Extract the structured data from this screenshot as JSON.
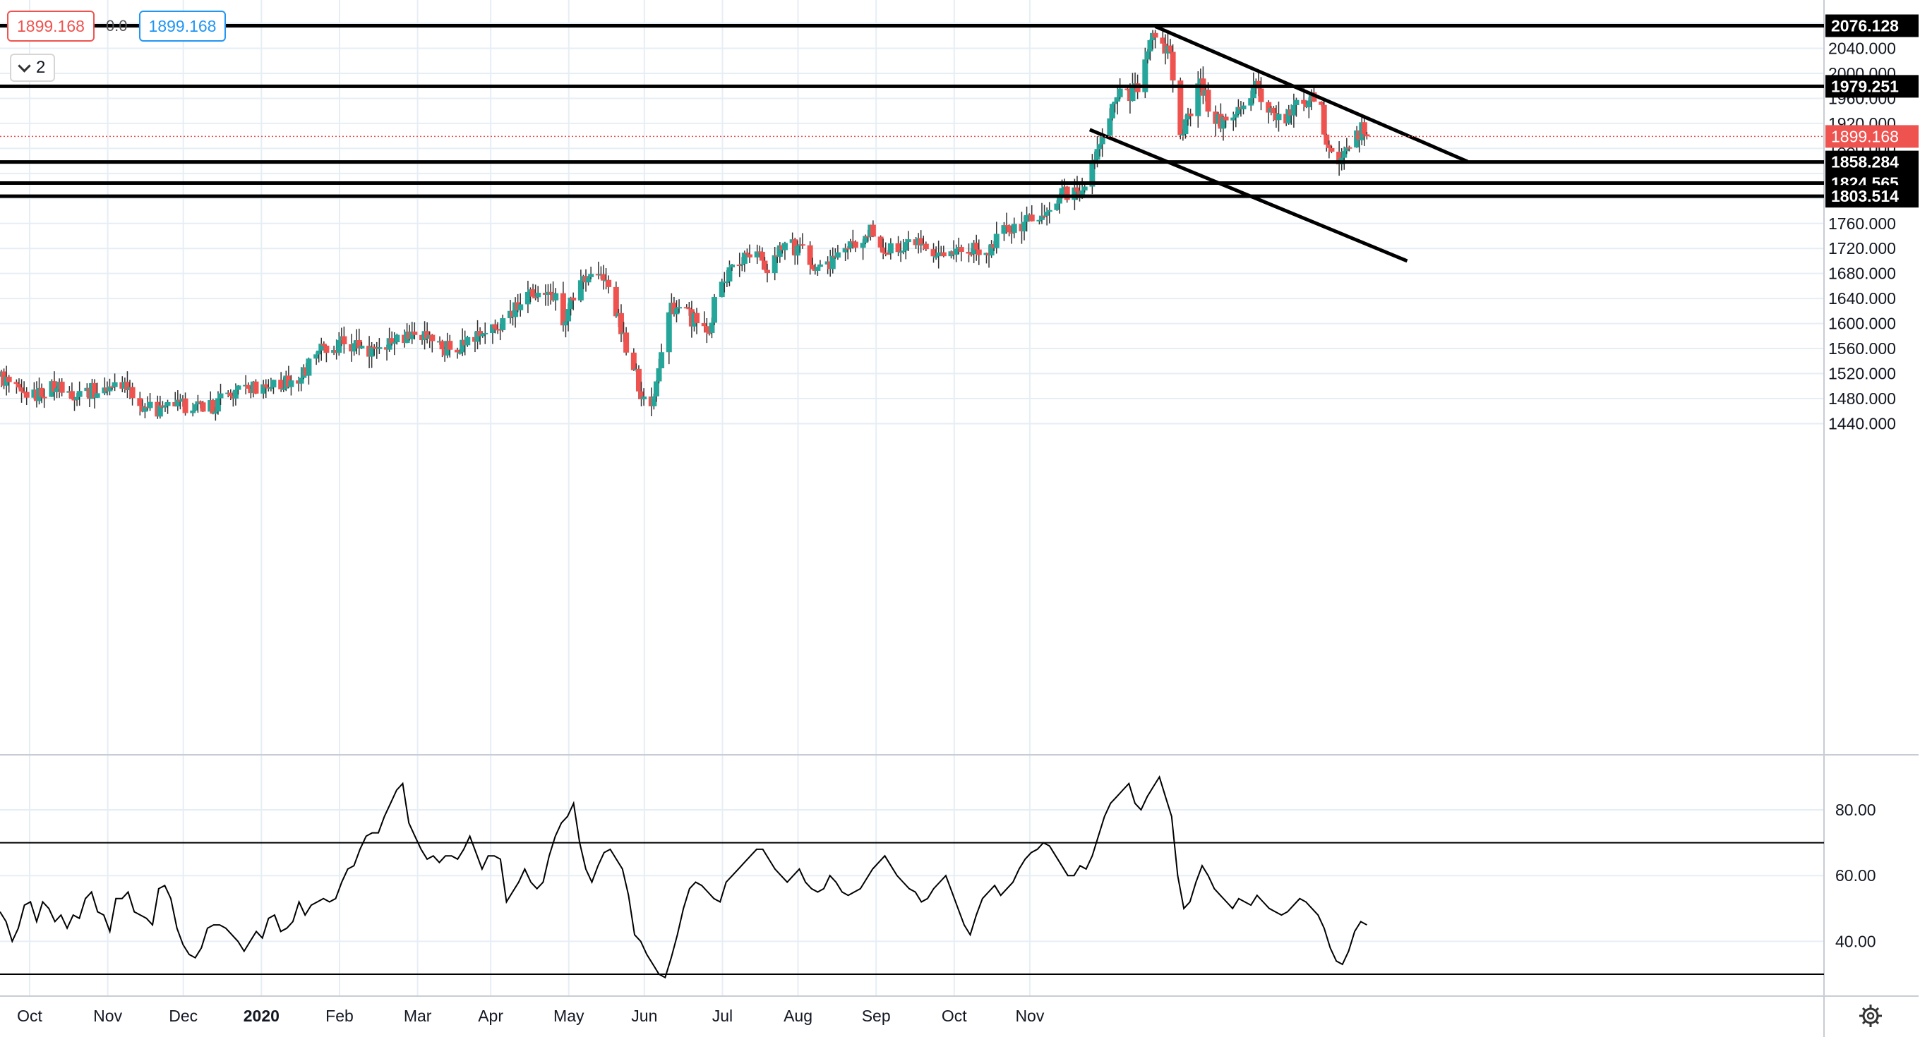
{
  "legend": {
    "ask": "1899.168",
    "change": "0.0",
    "bid": "1899.168",
    "indicator_count": "2"
  },
  "colors": {
    "up": "#26a69a",
    "down": "#ef5350",
    "grid": "#e6eef5",
    "level_line": "#000000",
    "current_price": "#ef5350"
  },
  "chart_data": [
    {
      "type": "candlestick",
      "title": "",
      "period": "daily",
      "x_axis_labels": [
        "Oct",
        "Nov",
        "Dec",
        "2020",
        "Feb",
        "Mar",
        "Apr",
        "May",
        "Jun",
        "Jul",
        "Aug",
        "Sep",
        "Oct",
        "Nov"
      ],
      "y_tick_labels": [
        "2040.000",
        "2000.000",
        "1960.000",
        "1920.000",
        "1880.000",
        "1840.000",
        "1760.000",
        "1720.000",
        "1680.000",
        "1640.000",
        "1600.000",
        "1560.000",
        "1520.000",
        "1480.000",
        "1440.000"
      ],
      "ylim": [
        1420,
        2130
      ],
      "close_path": [
        [
          0,
          1515
        ],
        [
          10,
          1475
        ],
        [
          20,
          1502
        ],
        [
          30,
          1488
        ],
        [
          40,
          1495
        ],
        [
          50,
          1505
        ],
        [
          56,
          1470
        ],
        [
          62,
          1460
        ],
        [
          72,
          1470
        ],
        [
          82,
          1462
        ],
        [
          88,
          1480
        ],
        [
          98,
          1495
        ],
        [
          110,
          1505
        ],
        [
          118,
          1510
        ],
        [
          126,
          1560
        ],
        [
          130,
          1552
        ],
        [
          136,
          1572
        ],
        [
          146,
          1560
        ],
        [
          156,
          1575
        ],
        [
          166,
          1587
        ],
        [
          176,
          1560
        ],
        [
          186,
          1572
        ],
        [
          196,
          1590
        ],
        [
          206,
          1630
        ],
        [
          214,
          1662
        ],
        [
          220,
          1640
        ],
        [
          222,
          1600
        ],
        [
          230,
          1662
        ],
        [
          236,
          1688
        ],
        [
          242,
          1650
        ],
        [
          246,
          1590
        ],
        [
          250,
          1540
        ],
        [
          254,
          1490
        ],
        [
          258,
          1470
        ],
        [
          262,
          1560
        ],
        [
          266,
          1630
        ],
        [
          274,
          1608
        ],
        [
          280,
          1580
        ],
        [
          284,
          1645
        ],
        [
          290,
          1690
        ],
        [
          298,
          1720
        ],
        [
          304,
          1688
        ],
        [
          310,
          1730
        ],
        [
          318,
          1712
        ],
        [
          324,
          1695
        ],
        [
          332,
          1700
        ],
        [
          338,
          1725
        ],
        [
          344,
          1750
        ],
        [
          350,
          1720
        ],
        [
          356,
          1710
        ],
        [
          362,
          1732
        ],
        [
          370,
          1695
        ],
        [
          378,
          1715
        ],
        [
          386,
          1725
        ],
        [
          392,
          1720
        ],
        [
          398,
          1748
        ],
        [
          404,
          1755
        ],
        [
          410,
          1770
        ],
        [
          416,
          1790
        ],
        [
          422,
          1810
        ],
        [
          428,
          1805
        ],
        [
          432,
          1840
        ],
        [
          436,
          1885
        ],
        [
          440,
          1930
        ],
        [
          444,
          1975
        ],
        [
          448,
          1970
        ],
        [
          452,
          1990
        ],
        [
          455,
          2030
        ],
        [
          458,
          2065
        ],
        [
          461,
          2045
        ],
        [
          464,
          2030
        ],
        [
          467,
          1905
        ],
        [
          472,
          1930
        ],
        [
          476,
          1990
        ],
        [
          480,
          1940
        ],
        [
          486,
          1915
        ],
        [
          492,
          1945
        ],
        [
          498,
          1975
        ],
        [
          504,
          1940
        ],
        [
          510,
          1930
        ],
        [
          516,
          1948
        ],
        [
          520,
          1955
        ],
        [
          524,
          1945
        ],
        [
          526,
          1890
        ],
        [
          529,
          1858
        ],
        [
          533,
          1870
        ],
        [
          537,
          1895
        ],
        [
          540,
          1910
        ],
        [
          542,
          1899
        ]
      ],
      "start_date": "2019-10-01",
      "current_price": 1899.168,
      "price_levels": [
        2076.128,
        1979.251,
        1858.284,
        1824.565,
        1803.514
      ],
      "trendlines": [
        {
          "from": [
            458,
            2075
          ],
          "to": [
            582,
            1859
          ]
        },
        {
          "from": [
            432,
            1910
          ],
          "to": [
            558,
            1700
          ]
        }
      ]
    },
    {
      "type": "line",
      "title": "",
      "y_tick_labels": [
        "80.00",
        "60.00",
        "40.00"
      ],
      "ylim": [
        28,
        95
      ],
      "reference_lines": [
        70,
        30
      ],
      "series": [
        {
          "values": [
            49,
            46,
            40,
            44,
            51,
            52,
            46,
            52,
            50,
            46,
            48,
            44,
            48,
            47,
            53,
            55,
            49,
            48,
            43,
            53,
            53,
            55,
            49,
            48,
            47,
            45,
            56,
            57,
            53,
            44,
            39,
            36,
            35,
            38,
            44,
            45,
            45,
            44,
            42,
            40,
            37,
            40,
            43,
            41,
            47,
            48,
            43,
            44,
            46,
            52,
            48,
            51,
            52,
            53,
            52,
            53,
            58,
            62,
            63,
            68,
            72,
            73,
            73,
            78,
            82,
            86,
            88,
            76,
            72,
            68,
            65,
            66,
            64,
            66,
            66,
            65,
            68,
            72,
            67,
            62,
            66,
            66,
            65,
            52,
            55,
            58,
            62,
            58,
            56,
            58,
            66,
            72,
            76,
            78,
            82,
            70,
            62,
            58,
            63,
            67,
            68,
            65,
            62,
            54,
            42,
            40,
            36,
            33,
            30,
            29,
            35,
            42,
            50,
            56,
            58,
            57,
            55,
            53,
            52,
            58,
            60,
            62,
            64,
            66,
            68,
            68,
            65,
            62,
            60,
            58,
            60,
            62,
            58,
            56,
            55,
            56,
            60,
            58,
            55,
            54,
            55,
            56,
            59,
            62,
            64,
            66,
            63,
            60,
            58,
            56,
            55,
            52,
            53,
            56,
            58,
            60,
            55,
            50,
            45,
            42,
            48,
            53,
            55,
            57,
            54,
            56,
            58,
            62,
            65,
            67,
            68,
            70,
            69,
            66,
            63,
            60,
            60,
            63,
            62,
            66,
            72,
            78,
            82,
            84,
            86,
            88,
            82,
            80,
            84,
            87,
            90,
            84,
            78,
            60,
            50,
            52,
            58,
            63,
            60,
            56,
            54,
            52,
            50,
            53,
            52,
            51,
            54,
            52,
            50,
            49,
            48,
            49,
            51,
            53,
            52,
            50,
            48,
            44,
            38,
            34,
            33,
            37,
            43,
            46,
            45
          ]
        }
      ]
    }
  ]
}
